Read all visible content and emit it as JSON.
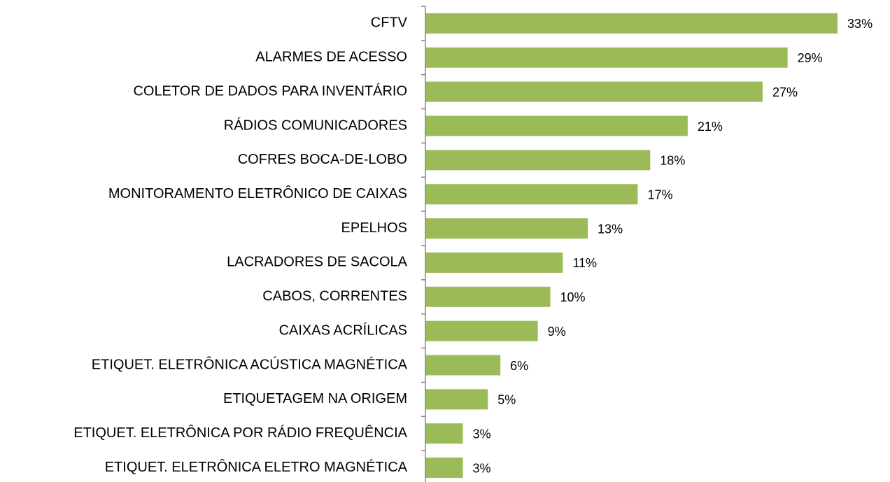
{
  "chart_data": {
    "type": "bar",
    "orientation": "horizontal",
    "categories": [
      "CFTV",
      "ALARMES DE ACESSO",
      "COLETOR DE DADOS PARA INVENTÁRIO",
      "RÁDIOS COMUNICADORES",
      "COFRES BOCA-DE-LOBO",
      "MONITORAMENTO ELETRÔNICO DE CAIXAS",
      "EPELHOS",
      "LACRADORES DE SACOLA",
      "CABOS, CORRENTES",
      "CAIXAS ACRÍLICAS",
      "ETIQUET. ELETRÔNICA ACÚSTICA MAGNÉTICA",
      "ETIQUETAGEM NA ORIGEM",
      "ETIQUET. ELETRÔNICA POR RÁDIO FREQUÊNCIA",
      "ETIQUET. ELETRÔNICA ELETRO MAGNÉTICA"
    ],
    "values": [
      33,
      29,
      27,
      21,
      18,
      17,
      13,
      11,
      10,
      9,
      6,
      5,
      3,
      3
    ],
    "value_labels": [
      "33%",
      "29%",
      "27%",
      "21%",
      "18%",
      "17%",
      "13%",
      "11%",
      "10%",
      "9%",
      "6%",
      "5%",
      "3%",
      "3%"
    ],
    "color": "#9bbb59",
    "xlim": [
      0,
      35
    ]
  }
}
